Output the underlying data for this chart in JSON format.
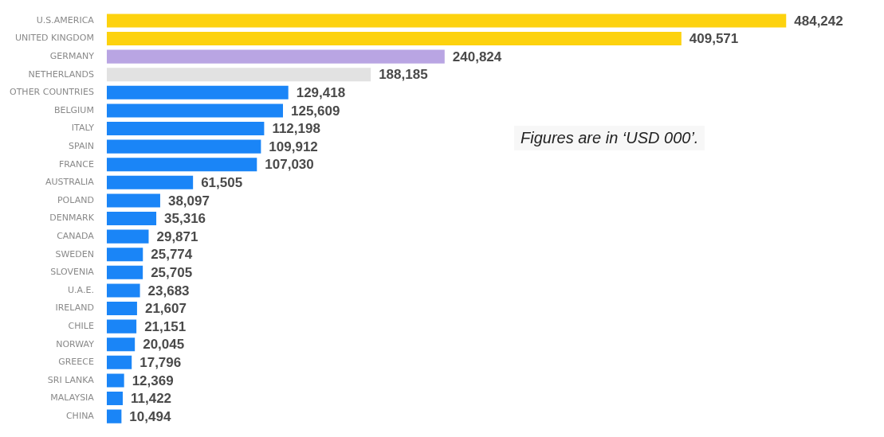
{
  "chart_data": {
    "type": "bar",
    "orientation": "horizontal",
    "value_labels": [
      "484,242",
      "409,571",
      "240,824",
      "188,185",
      "129,418",
      "125,609",
      "112,198",
      "109,912",
      "107,030",
      "61,505",
      "38,097",
      "35,316",
      "29,871",
      "25,774",
      "25,705",
      "23,683",
      "21,607",
      "21,151",
      "20,045",
      "17,796",
      "12,369",
      "11,422",
      "10,494"
    ],
    "categories": [
      "U.S.AMERICA",
      "UNITED KINGDOM",
      "GERMANY",
      "NETHERLANDS",
      "OTHER COUNTRIES",
      "BELGIUM",
      "ITALY",
      "SPAIN",
      "FRANCE",
      "AUSTRALIA",
      "POLAND",
      "DENMARK",
      "CANADA",
      "SWEDEN",
      "SLOVENIA",
      "U.A.E.",
      "IRELAND",
      "CHILE",
      "NORWAY",
      "GREECE",
      "SRI LANKA",
      "MALAYSIA",
      "CHINA"
    ],
    "values": [
      484242,
      409571,
      240824,
      188185,
      129418,
      125609,
      112198,
      109912,
      107030,
      61505,
      38097,
      35316,
      29871,
      25774,
      25705,
      23683,
      21607,
      21151,
      20045,
      17796,
      12369,
      11422,
      10494
    ],
    "colors": [
      "#fdd20e",
      "#fdd20e",
      "#b9a5e3",
      "#e2e2e2",
      "#1a85f7",
      "#1a85f7",
      "#1a85f7",
      "#1a85f7",
      "#1a85f7",
      "#1a85f7",
      "#1a85f7",
      "#1a85f7",
      "#1a85f7",
      "#1a85f7",
      "#1a85f7",
      "#1a85f7",
      "#1a85f7",
      "#1a85f7",
      "#1a85f7",
      "#1a85f7",
      "#1a85f7",
      "#1a85f7",
      "#1a85f7"
    ],
    "annotations": [
      "Figures are in ‘USD 000’."
    ]
  }
}
